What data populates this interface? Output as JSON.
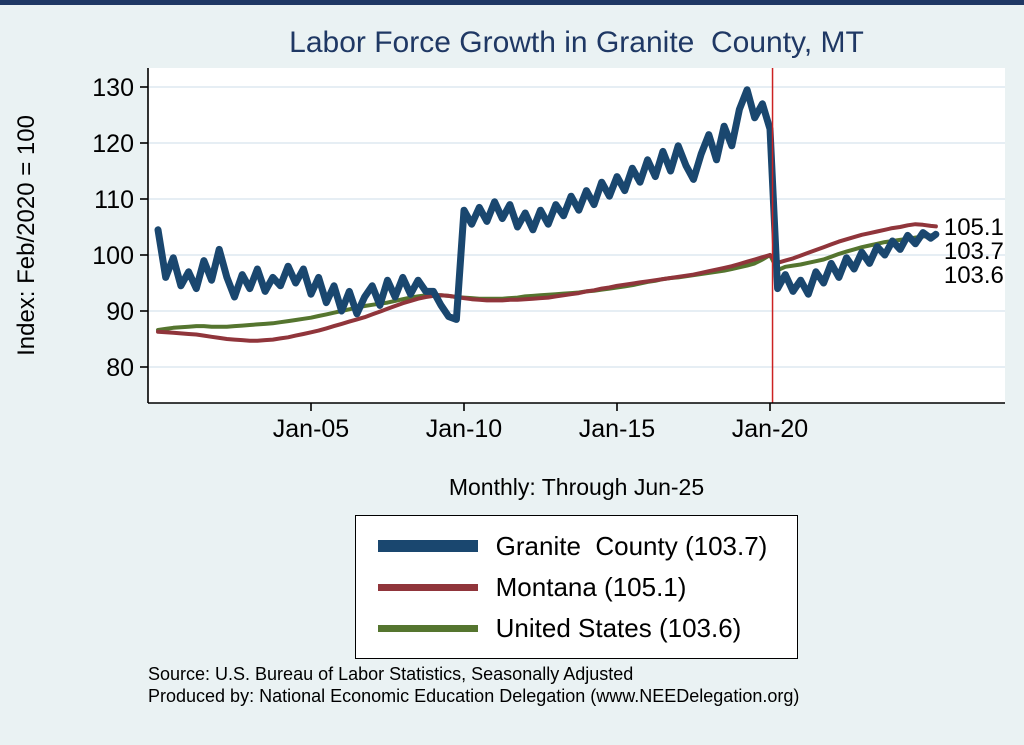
{
  "page": {
    "title": "Labor Force Growth in Granite  County, MT",
    "subtitle": "Monthly: Through Jun-25",
    "source_line1": "Source: U.S. Bureau of Labor Statistics, Seasonally Adjusted",
    "source_line2": "Produced by: National Economic Education Delegation (www.NEEDelegation.org)",
    "colors": {
      "background": "#eaf2f3",
      "title": "#1f3864",
      "plot_bg": "#ffffff",
      "grid": "#d6e4ee",
      "axis": "#000000",
      "event_line": "#cc2222"
    }
  },
  "chart_data": {
    "type": "line",
    "title": "Labor Force Growth in Granite  County, MT",
    "xlabel": "Monthly: Through Jun-25",
    "ylabel": "Index: Feb/2020 = 100",
    "grid": "horizontal-only",
    "legend_position": "bottom-center",
    "ylim": [
      74,
      134
    ],
    "xlim": [
      1999.7,
      2027.7
    ],
    "y_ticks": [
      80,
      90,
      100,
      110,
      120,
      130
    ],
    "x_ticks": [
      {
        "x": 2005,
        "label": "Jan-05"
      },
      {
        "x": 2010,
        "label": "Jan-10"
      },
      {
        "x": 2015,
        "label": "Jan-15"
      },
      {
        "x": 2020,
        "label": "Jan-20"
      }
    ],
    "x_start": 2000.0,
    "x_step": 0.25,
    "x_end": 2025.42,
    "event_line": {
      "x": 2020.083,
      "meaning": "Feb-2020"
    },
    "series": [
      {
        "name": "granite-county",
        "label": "Granite  County (103.7)",
        "end_label": "103.7",
        "color": "#1a476f",
        "width": 7,
        "values": [
          104.5,
          96,
          99.5,
          94.5,
          97,
          94,
          99,
          95.5,
          101,
          96,
          92.5,
          96.5,
          94,
          97.5,
          93.5,
          96,
          94.5,
          98,
          95,
          97.5,
          93,
          96,
          91.5,
          94.5,
          90,
          93.5,
          89.5,
          92.5,
          94.5,
          91,
          95.5,
          92.5,
          96,
          93,
          95.5,
          93.5,
          93.5,
          91,
          89,
          88.5,
          108,
          105.5,
          108.5,
          106,
          109.5,
          106.5,
          109,
          105,
          107.5,
          104.5,
          108,
          105.5,
          109,
          107,
          110.5,
          108,
          111.5,
          109,
          113,
          110.5,
          114,
          111.5,
          115.5,
          113,
          117,
          114,
          118.5,
          115,
          119.5,
          116,
          113.5,
          118,
          121.5,
          117,
          123,
          119.5,
          126,
          129.5,
          124.5,
          127,
          122.5,
          94,
          96.5,
          93.5,
          95.5,
          93,
          97,
          95,
          98.5,
          96,
          99.5,
          97.5,
          100.5,
          98.5,
          101.5,
          100,
          102.5,
          101,
          103.5,
          102,
          104,
          103,
          103.7
        ]
      },
      {
        "name": "montana",
        "label": "Montana (105.1)",
        "end_label": "105.1",
        "color": "#90353b",
        "width": 4,
        "values": [
          86.3,
          86.2,
          86.1,
          86.0,
          85.9,
          85.8,
          85.6,
          85.4,
          85.2,
          85.0,
          84.9,
          84.8,
          84.7,
          84.7,
          84.8,
          84.9,
          85.1,
          85.3,
          85.6,
          85.9,
          86.2,
          86.5,
          86.9,
          87.3,
          87.7,
          88.1,
          88.5,
          88.9,
          89.4,
          89.9,
          90.4,
          90.9,
          91.4,
          91.8,
          92.2,
          92.5,
          92.7,
          92.8,
          92.7,
          92.5,
          92.3,
          92.1,
          92.0,
          91.9,
          91.9,
          91.9,
          92.0,
          92.0,
          92.1,
          92.2,
          92.3,
          92.4,
          92.6,
          92.8,
          93.0,
          93.2,
          93.5,
          93.7,
          94.0,
          94.2,
          94.5,
          94.7,
          94.9,
          95.1,
          95.3,
          95.5,
          95.7,
          95.9,
          96.1,
          96.3,
          96.5,
          96.8,
          97.1,
          97.4,
          97.7,
          98.0,
          98.4,
          98.8,
          99.2,
          99.6,
          100.0,
          98.6,
          99.0,
          99.4,
          99.9,
          100.4,
          100.9,
          101.4,
          101.9,
          102.4,
          102.8,
          103.2,
          103.6,
          103.9,
          104.2,
          104.5,
          104.8,
          105.0,
          105.3,
          105.5,
          105.4,
          105.2,
          105.1
        ]
      },
      {
        "name": "united-states",
        "label": "United States (103.6)",
        "end_label": "103.6",
        "color": "#55752f",
        "width": 4,
        "values": [
          86.6,
          86.8,
          87.0,
          87.1,
          87.2,
          87.3,
          87.3,
          87.2,
          87.2,
          87.2,
          87.3,
          87.4,
          87.5,
          87.6,
          87.7,
          87.8,
          88.0,
          88.2,
          88.4,
          88.6,
          88.8,
          89.1,
          89.4,
          89.7,
          90.0,
          90.3,
          90.6,
          90.9,
          91.1,
          91.3,
          91.5,
          91.8,
          92.1,
          92.4,
          92.6,
          92.8,
          92.9,
          92.8,
          92.7,
          92.5,
          92.4,
          92.3,
          92.2,
          92.2,
          92.2,
          92.2,
          92.3,
          92.4,
          92.6,
          92.7,
          92.8,
          92.9,
          93.0,
          93.1,
          93.2,
          93.3,
          93.5,
          93.6,
          93.8,
          94.0,
          94.2,
          94.4,
          94.6,
          94.9,
          95.2,
          95.4,
          95.7,
          95.9,
          96.0,
          96.2,
          96.4,
          96.6,
          96.8,
          97.0,
          97.2,
          97.5,
          97.8,
          98.1,
          98.5,
          99.2,
          100.0,
          97.3,
          97.9,
          98.1,
          98.3,
          98.6,
          98.9,
          99.2,
          99.7,
          100.2,
          100.6,
          101.0,
          101.4,
          101.7,
          102.0,
          102.3,
          102.5,
          102.7,
          102.9,
          103.1,
          103.3,
          103.5,
          103.6
        ]
      }
    ]
  }
}
